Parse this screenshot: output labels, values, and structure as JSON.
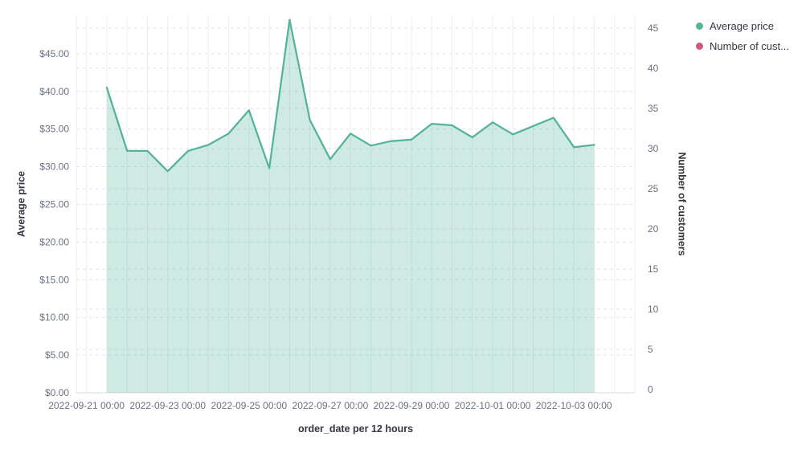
{
  "chart_data": {
    "type": "area",
    "xlabel": "order_date per 12 hours",
    "ylabel_left": "Average price",
    "ylabel_right": "Number of customers",
    "ylim_left": [
      0,
      50
    ],
    "ylim_right": [
      0,
      46.9
    ],
    "grid": true,
    "legend_position": "top-right",
    "x_bucket_interval_hours": 12,
    "x_tick_bucket_indices": [
      0,
      4,
      8,
      12,
      16,
      20,
      24
    ],
    "x_tick_labels": [
      "2022-09-21 00:00",
      "2022-09-23 00:00",
      "2022-09-25 00:00",
      "2022-09-27 00:00",
      "2022-09-29 00:00",
      "2022-10-01 00:00",
      "2022-10-03 00:00"
    ],
    "y_left_ticks": [
      {
        "value": 0,
        "label": "$0.00"
      },
      {
        "value": 5,
        "label": "$5.00"
      },
      {
        "value": 10,
        "label": "$10.00"
      },
      {
        "value": 15,
        "label": "$15.00"
      },
      {
        "value": 20,
        "label": "$20.00"
      },
      {
        "value": 25,
        "label": "$25.00"
      },
      {
        "value": 30,
        "label": "$30.00"
      },
      {
        "value": 35,
        "label": "$35.00"
      },
      {
        "value": 40,
        "label": "$40.00"
      },
      {
        "value": 45,
        "label": "$45.00"
      }
    ],
    "y_right_ticks": [
      {
        "value": 0,
        "label": "0"
      },
      {
        "value": 5,
        "label": "5"
      },
      {
        "value": 10,
        "label": "10"
      },
      {
        "value": 15,
        "label": "15"
      },
      {
        "value": 20,
        "label": "20"
      },
      {
        "value": 25,
        "label": "25"
      },
      {
        "value": 30,
        "label": "30"
      },
      {
        "value": 35,
        "label": "35"
      },
      {
        "value": 40,
        "label": "40"
      },
      {
        "value": 45,
        "label": "45"
      }
    ],
    "series": [
      {
        "name": "Average price",
        "axis": "left",
        "color": "#54b399",
        "fill": "rgba(84,179,153,0.28)",
        "first_point_bucket_index": 1,
        "points": [
          {
            "time": "2022-09-21 12:00",
            "value": 40.5
          },
          {
            "time": "2022-09-22 00:00",
            "value": 32.1
          },
          {
            "time": "2022-09-22 12:00",
            "value": 32.1
          },
          {
            "time": "2022-09-23 00:00",
            "value": 29.4
          },
          {
            "time": "2022-09-23 12:00",
            "value": 32.1
          },
          {
            "time": "2022-09-24 00:00",
            "value": 32.9
          },
          {
            "time": "2022-09-24 12:00",
            "value": 34.4
          },
          {
            "time": "2022-09-25 00:00",
            "value": 37.5
          },
          {
            "time": "2022-09-25 12:00",
            "value": 29.8
          },
          {
            "time": "2022-09-26 00:00",
            "value": 49.5
          },
          {
            "time": "2022-09-26 12:00",
            "value": 36.2
          },
          {
            "time": "2022-09-27 00:00",
            "value": 31.0
          },
          {
            "time": "2022-09-27 12:00",
            "value": 34.4
          },
          {
            "time": "2022-09-28 00:00",
            "value": 32.8
          },
          {
            "time": "2022-09-28 12:00",
            "value": 33.4
          },
          {
            "time": "2022-09-29 00:00",
            "value": 33.6
          },
          {
            "time": "2022-09-29 12:00",
            "value": 35.7
          },
          {
            "time": "2022-09-30 00:00",
            "value": 35.5
          },
          {
            "time": "2022-09-30 12:00",
            "value": 33.9
          },
          {
            "time": "2022-10-01 00:00",
            "value": 35.9
          },
          {
            "time": "2022-10-01 12:00",
            "value": 34.3
          },
          {
            "time": "2022-10-02 00:00",
            "value": 35.4
          },
          {
            "time": "2022-10-02 12:00",
            "value": 36.5
          },
          {
            "time": "2022-10-03 00:00",
            "value": 32.6
          },
          {
            "time": "2022-10-03 12:00",
            "value": 32.9
          }
        ]
      },
      {
        "name": "Number of customers",
        "axis": "right",
        "color": "#ca5c78",
        "points": []
      }
    ]
  },
  "legend": {
    "items": [
      {
        "label": "Average price",
        "color": "#54b399"
      },
      {
        "label": "Number of cust...",
        "color": "#ca5c78"
      }
    ]
  },
  "colors": {
    "vertical_grid": "#eceef2",
    "horizontal_grid": "#e0e3e9",
    "axis_line": "#d8dbe0",
    "tick_text": "#6a7080",
    "title_text": "#343741"
  }
}
